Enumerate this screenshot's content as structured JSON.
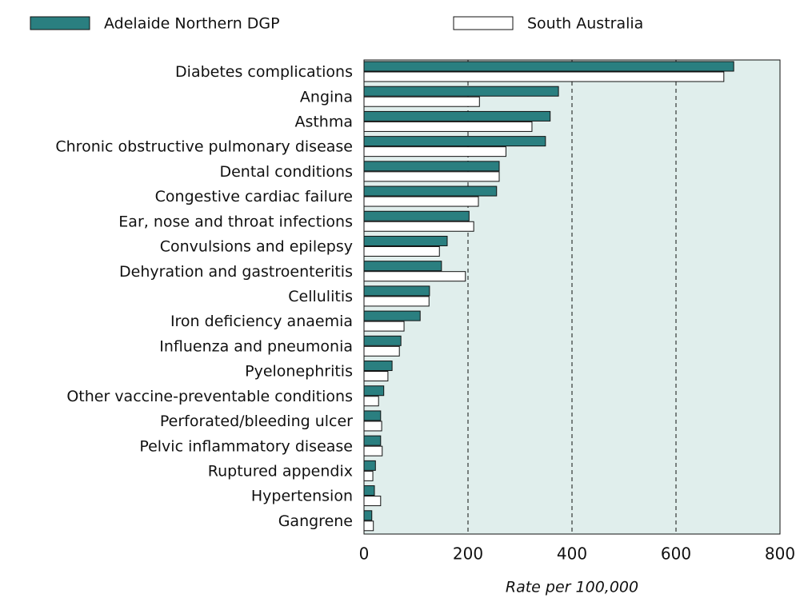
{
  "chart_data": {
    "type": "hbar",
    "categories": [
      "Diabetes complications",
      "Angina",
      "Asthma",
      "Chronic obstructive pulmonary disease",
      "Dental conditions",
      "Congestive cardiac failure",
      "Ear, nose and throat infections",
      "Convulsions and epilepsy",
      "Dehyration and gastroenteritis",
      "Cellulitis",
      "Iron deficiency anaemia",
      "Influenza and pneumonia",
      "Pyelonephritis",
      "Other vaccine-preventable conditions",
      "Perforated/bleeding ulcer",
      "Pelvic inflammatory disease",
      "Ruptured appendix",
      "Hypertension",
      "Gangrene"
    ],
    "series": [
      {
        "name": "Adelaide Northern DGP",
        "color": "#2a7f80",
        "values": [
          711,
          374,
          358,
          349,
          260,
          255,
          202,
          160,
          149,
          126,
          108,
          71,
          54,
          38,
          32,
          32,
          22,
          20,
          15
        ]
      },
      {
        "name": "South Australia",
        "color": "#ffffff",
        "values": [
          692,
          222,
          323,
          273,
          260,
          220,
          211,
          145,
          195,
          125,
          77,
          68,
          46,
          28,
          34,
          35,
          17,
          32,
          18
        ]
      }
    ],
    "xlabel": "Rate per 100,000",
    "xlim": [
      0,
      800
    ],
    "xticks": [
      0,
      200,
      400,
      600,
      800
    ],
    "grid": true,
    "legend": "top",
    "background": "#e0eeec"
  }
}
